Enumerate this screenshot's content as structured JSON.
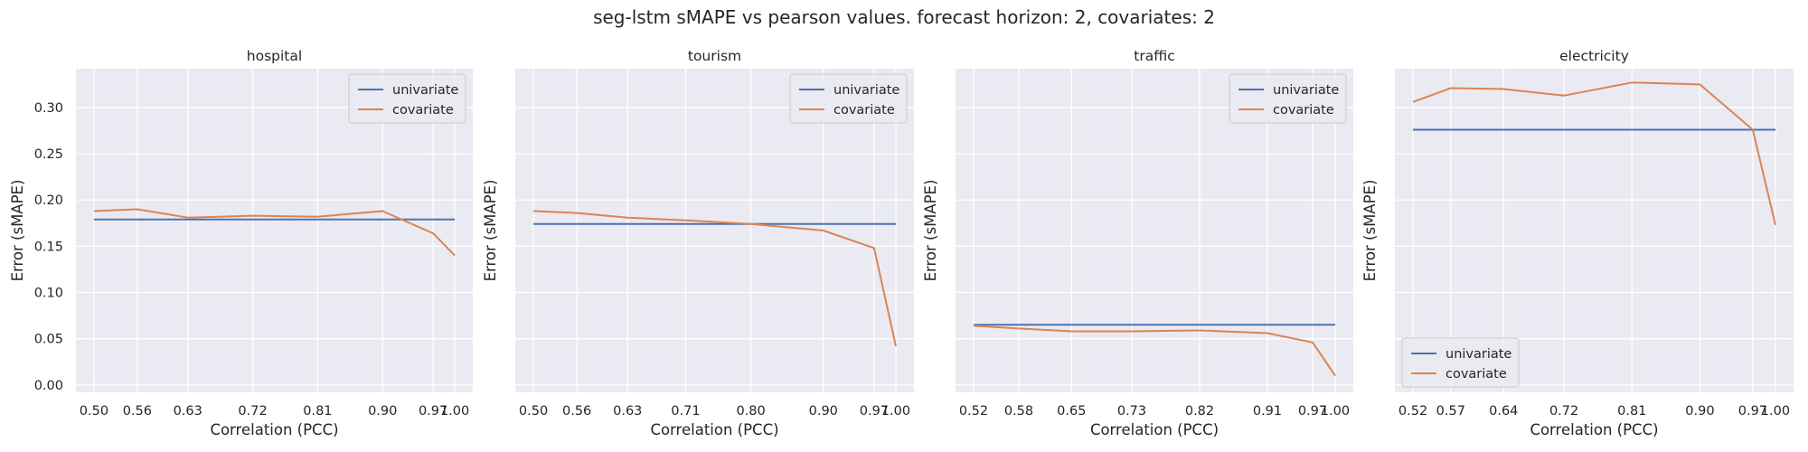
{
  "figure": {
    "title": "seg-lstm  sMAPE vs pearson values. forecast horizon: 2, covariates: 2"
  },
  "colors": {
    "background": "#eaeaf2",
    "grid": "#ffffff",
    "univariate": "#4c72b0",
    "covariate": "#dd8452"
  },
  "chart_data": [
    {
      "type": "line",
      "title": "hospital",
      "xlabel": "Correlation (PCC)",
      "ylabel": "Error (sMAPE)",
      "xlim": [
        0.475,
        1.025
      ],
      "ylim": [
        -0.008,
        0.342
      ],
      "xticks": [
        "0.50",
        "0.56",
        "0.63",
        "0.72",
        "0.81",
        "0.90",
        "0.97",
        "1.00"
      ],
      "xtick_values": [
        0.5,
        0.56,
        0.63,
        0.72,
        0.81,
        0.9,
        0.97,
        1.0
      ],
      "yticks": [
        "0.00",
        "0.05",
        "0.10",
        "0.15",
        "0.20",
        "0.25",
        "0.30"
      ],
      "ytick_values": [
        0.0,
        0.05,
        0.1,
        0.15,
        0.2,
        0.25,
        0.3
      ],
      "legend_position": "upper right",
      "x": [
        0.5,
        0.56,
        0.63,
        0.72,
        0.81,
        0.9,
        0.97,
        1.0
      ],
      "series": [
        {
          "name": "univariate",
          "values": [
            0.179,
            0.179,
            0.179,
            0.179,
            0.179,
            0.179,
            0.179,
            0.179
          ]
        },
        {
          "name": "covariate",
          "values": [
            0.188,
            0.19,
            0.181,
            0.183,
            0.182,
            0.188,
            0.164,
            0.14
          ]
        }
      ]
    },
    {
      "type": "line",
      "title": "tourism",
      "xlabel": "Correlation (PCC)",
      "ylabel": "Error (sMAPE)",
      "xlim": [
        0.475,
        1.025
      ],
      "ylim": [
        -0.008,
        0.342
      ],
      "xticks": [
        "0.50",
        "0.56",
        "0.63",
        "0.71",
        "0.80",
        "0.90",
        "0.97",
        "1.00"
      ],
      "xtick_values": [
        0.5,
        0.56,
        0.63,
        0.71,
        0.8,
        0.9,
        0.97,
        1.0
      ],
      "legend_position": "upper right",
      "x": [
        0.5,
        0.56,
        0.63,
        0.71,
        0.8,
        0.9,
        0.97,
        1.0
      ],
      "series": [
        {
          "name": "univariate",
          "values": [
            0.174,
            0.174,
            0.174,
            0.174,
            0.174,
            0.174,
            0.174,
            0.174
          ]
        },
        {
          "name": "covariate",
          "values": [
            0.188,
            0.186,
            0.181,
            0.178,
            0.174,
            0.167,
            0.148,
            0.042
          ]
        }
      ]
    },
    {
      "type": "line",
      "title": "traffic",
      "xlabel": "Correlation (PCC)",
      "ylabel": "Error (sMAPE)",
      "xlim": [
        0.496,
        1.024
      ],
      "ylim": [
        -0.008,
        0.342
      ],
      "xticks": [
        "0.52",
        "0.58",
        "0.65",
        "0.73",
        "0.82",
        "0.91",
        "0.97",
        "1.00"
      ],
      "xtick_values": [
        0.52,
        0.58,
        0.65,
        0.73,
        0.82,
        0.91,
        0.97,
        1.0
      ],
      "legend_position": "upper right",
      "x": [
        0.52,
        0.58,
        0.65,
        0.73,
        0.82,
        0.91,
        0.97,
        1.0
      ],
      "series": [
        {
          "name": "univariate",
          "values": [
            0.065,
            0.065,
            0.065,
            0.065,
            0.065,
            0.065,
            0.065,
            0.065
          ]
        },
        {
          "name": "covariate",
          "values": [
            0.064,
            0.061,
            0.058,
            0.058,
            0.059,
            0.056,
            0.046,
            0.01
          ]
        }
      ]
    },
    {
      "type": "line",
      "title": "electricity",
      "xlabel": "Correlation (PCC)",
      "ylabel": "Error (sMAPE)",
      "xlim": [
        0.496,
        1.024
      ],
      "ylim": [
        -0.008,
        0.342
      ],
      "xticks": [
        "0.52",
        "0.57",
        "0.64",
        "0.72",
        "0.81",
        "0.90",
        "0.97",
        "1.00"
      ],
      "xtick_values": [
        0.52,
        0.57,
        0.64,
        0.72,
        0.81,
        0.9,
        0.97,
        1.0
      ],
      "legend_position": "lower left",
      "x": [
        0.52,
        0.57,
        0.64,
        0.72,
        0.81,
        0.9,
        0.97,
        1.0
      ],
      "series": [
        {
          "name": "univariate",
          "values": [
            0.276,
            0.276,
            0.276,
            0.276,
            0.276,
            0.276,
            0.276,
            0.276
          ]
        },
        {
          "name": "covariate",
          "values": [
            0.306,
            0.321,
            0.32,
            0.313,
            0.327,
            0.325,
            0.276,
            0.173
          ]
        }
      ]
    }
  ]
}
